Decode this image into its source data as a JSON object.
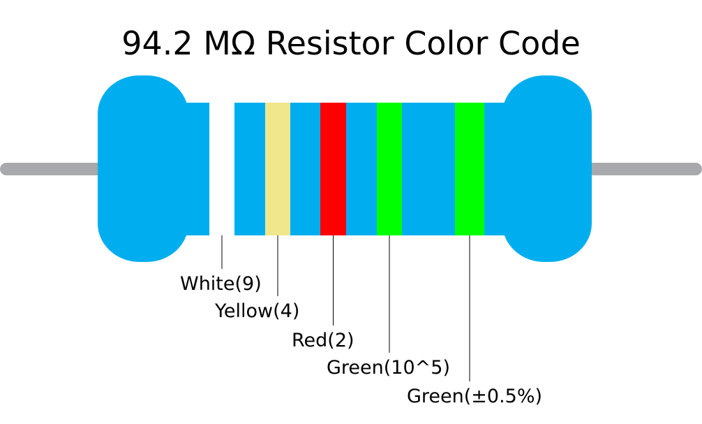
{
  "title": "94.2 MΩ Resistor Color Code",
  "bands": [
    {
      "label": "White(9)",
      "color": "#ffffff"
    },
    {
      "label": "Yellow(4)",
      "color": "#f0e68c"
    },
    {
      "label": "Red(2)",
      "color": "#ff0000"
    },
    {
      "label": "Green(10^5)",
      "color": "#00ff00"
    },
    {
      "label": "Green(±0.5%)",
      "color": "#00ff00"
    }
  ]
}
